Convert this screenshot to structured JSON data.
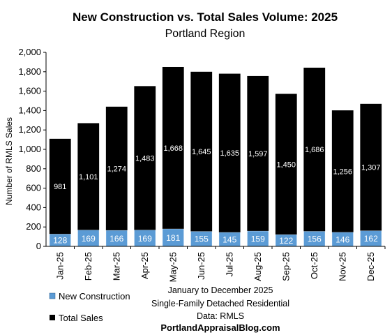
{
  "chart_data": {
    "type": "bar",
    "stacked": true,
    "title": "New Construction vs. Total Sales Volume: 2025",
    "subtitle": "Portland Region",
    "ylabel": "Number of RMLS Sales",
    "ylim": [
      0,
      2000
    ],
    "yticks": [
      "0",
      "200",
      "400",
      "600",
      "800",
      "1,000",
      "1,200",
      "1,400",
      "1,600",
      "1,800",
      "2,000"
    ],
    "categories": [
      "Jan-25",
      "Feb-25",
      "Mar-25",
      "Apr-25",
      "May-25",
      "Jun-25",
      "Jul-25",
      "Aug-25",
      "Sep-25",
      "Oct-25",
      "Nov-25",
      "Dec-25"
    ],
    "series": [
      {
        "name": "New Construction",
        "color": "#5b9bd5",
        "values": [
          128,
          169,
          166,
          169,
          181,
          155,
          145,
          159,
          122,
          156,
          146,
          162
        ],
        "labels": [
          "128",
          "169",
          "166",
          "169",
          "181",
          "155",
          "145",
          "159",
          "122",
          "156",
          "146",
          "162"
        ]
      },
      {
        "name": "Total Sales",
        "color": "#000000",
        "values": [
          981,
          1101,
          1274,
          1483,
          1668,
          1645,
          1635,
          1597,
          1450,
          1686,
          1256,
          1307
        ],
        "labels": [
          "981",
          "1,101",
          "1,274",
          "1,483",
          "1,668",
          "1,645",
          "1,635",
          "1,597",
          "1,450",
          "1,686",
          "1,256",
          "1,307"
        ]
      }
    ],
    "legend_position": "bottom-left",
    "grid": false,
    "notes": [
      "January to December 2025",
      "Single-Family Detached Residential",
      "Data: RMLS"
    ],
    "source": "PortlandAppraisalBlog.com"
  }
}
